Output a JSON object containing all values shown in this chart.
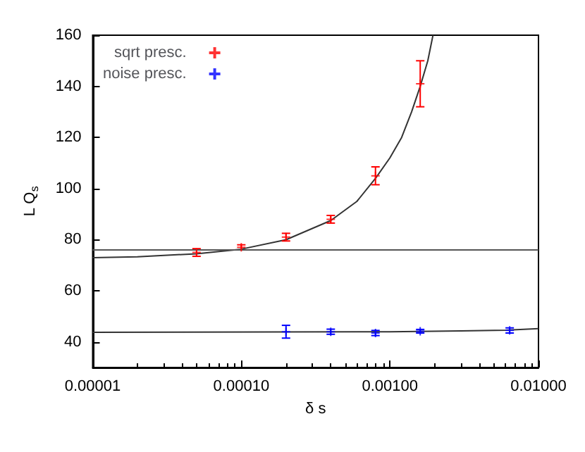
{
  "chart_data": {
    "type": "scatter",
    "xlabel": "δ s",
    "ylabel": "L Q$_{s}$",
    "log": "x",
    "xlim": [
      1e-05,
      0.01
    ],
    "xticks": [
      {
        "value": 1e-05,
        "label": "0.00001"
      },
      {
        "value": 0.0001,
        "label": "0.00010"
      },
      {
        "value": 0.001,
        "label": "0.00100"
      },
      {
        "value": 0.01,
        "label": "0.01000"
      }
    ],
    "ylim": [
      30,
      160
    ],
    "yticks": [
      40,
      60,
      80,
      100,
      120,
      140,
      160
    ],
    "grid": false,
    "legend": "top left",
    "ref_lines": [
      {
        "axis": "y",
        "value": 76,
        "color": "#555555"
      }
    ],
    "series": [
      {
        "name": "sqrt presc.",
        "color": "#ff0000",
        "marker": "cross",
        "x": [
          5e-05,
          0.0001,
          0.0002,
          0.0004,
          0.0008,
          0.0016
        ],
        "values": [
          75,
          77,
          81,
          88,
          105,
          141
        ],
        "errors": [
          1.5,
          1,
          1.5,
          1.5,
          3.5,
          9
        ]
      },
      {
        "name": "noise presc.",
        "color": "#0000ff",
        "marker": "cross",
        "x": [
          0.0002,
          0.0004,
          0.0008,
          0.0016,
          0.0064
        ],
        "values": [
          44,
          44,
          43.5,
          44.2,
          44.5
        ],
        "errors": [
          2.5,
          1,
          1,
          0.7,
          1
        ]
      },
      {
        "type": "line",
        "color": "#333333",
        "marker": "none",
        "x": [
          1e-05,
          2e-05,
          5e-05,
          0.0001,
          0.0002,
          0.0004,
          0.0006,
          0.0008,
          0.001,
          0.0012,
          0.0014,
          0.0016,
          0.0018,
          0.00195
        ],
        "values": [
          73,
          73.3,
          74.5,
          76.3,
          80,
          87.5,
          95,
          104,
          112,
          120,
          130,
          140,
          150,
          160
        ]
      },
      {
        "type": "line",
        "color": "#333333",
        "marker": "none",
        "x": [
          1e-05,
          0.001,
          0.003,
          0.006,
          0.01
        ],
        "values": [
          43.8,
          44,
          44.3,
          44.6,
          45.2
        ]
      }
    ]
  }
}
